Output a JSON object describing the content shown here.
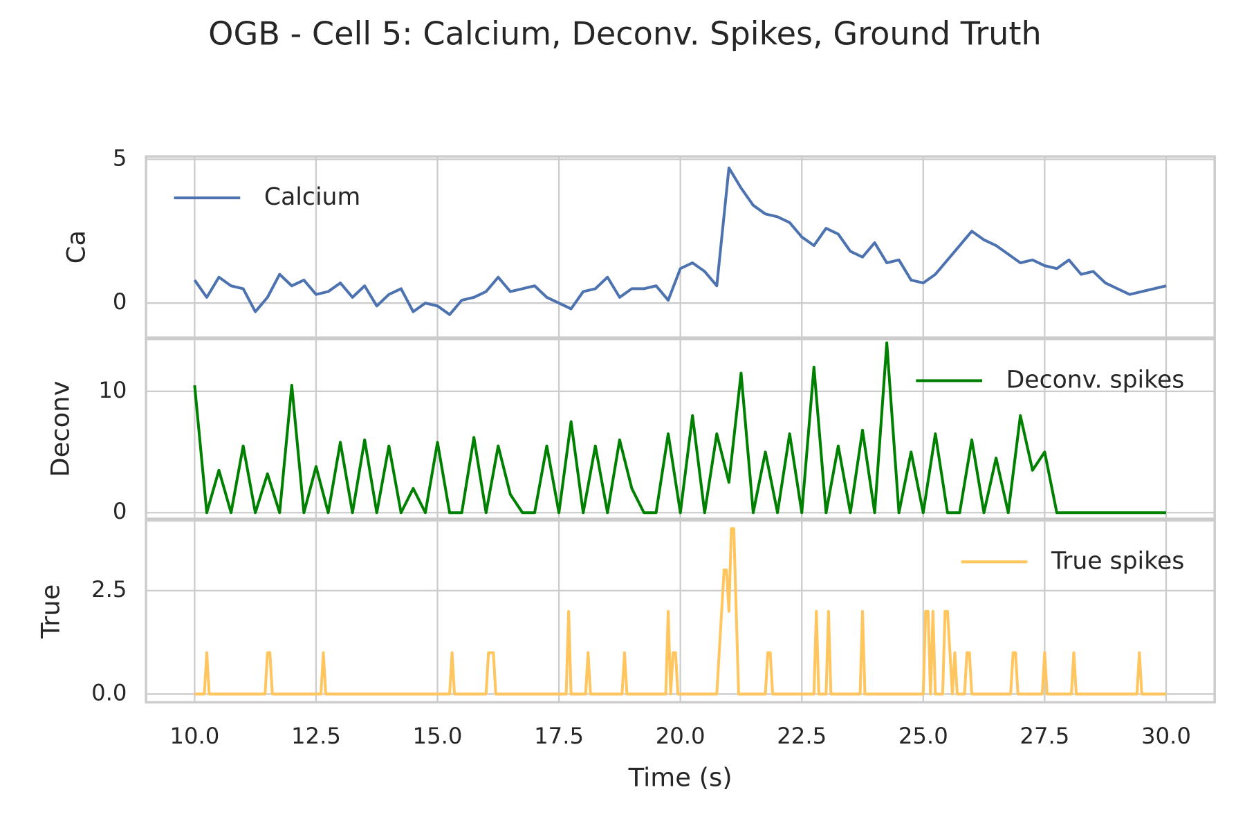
{
  "title": "OGB - Cell 5: Calcium, Deconv. Spikes, Ground Truth",
  "chart_data": [
    {
      "type": "line",
      "ylabel": "Ca",
      "legend": "upper left",
      "grid": true,
      "xlim": [
        9,
        31
      ],
      "xticks": [
        {
          "value": 10,
          "label": "10.0"
        },
        12.5,
        {
          "value": 15,
          "label": "15.0"
        },
        17.5,
        {
          "value": 20,
          "label": "20.0"
        },
        22.5,
        {
          "value": 25,
          "label": "25.0"
        },
        27.5,
        {
          "value": 30,
          "label": "30.0"
        }
      ],
      "ylim": [
        -1.2,
        5.1
      ],
      "yticks": [
        0,
        5
      ],
      "x": [
        10,
        10.25,
        10.5,
        10.75,
        11,
        11.25,
        11.5,
        11.75,
        12,
        12.25,
        12.5,
        12.75,
        13,
        13.25,
        13.5,
        13.75,
        14,
        14.25,
        14.5,
        14.75,
        15,
        15.25,
        15.5,
        15.75,
        16,
        16.25,
        16.5,
        16.75,
        17,
        17.25,
        17.5,
        17.75,
        18,
        18.25,
        18.5,
        18.75,
        19,
        19.25,
        19.5,
        19.75,
        20,
        20.25,
        20.5,
        20.75,
        21,
        21.25,
        21.5,
        21.75,
        22,
        22.25,
        22.5,
        22.75,
        23,
        23.25,
        23.5,
        23.75,
        24,
        24.25,
        24.5,
        24.75,
        25,
        25.25,
        25.5,
        25.75,
        26,
        26.25,
        26.5,
        26.75,
        27,
        27.25,
        27.5,
        27.75,
        28,
        28.25,
        28.5,
        28.75,
        29,
        29.25,
        29.5,
        29.75,
        30
      ],
      "series": [
        {
          "name": "Calcium",
          "color": "#4c72b0",
          "values": [
            0.8,
            0.2,
            0.9,
            0.6,
            0.5,
            -0.3,
            0.2,
            1.0,
            0.6,
            0.8,
            0.3,
            0.4,
            0.7,
            0.2,
            0.6,
            -0.1,
            0.3,
            0.5,
            -0.3,
            0.0,
            -0.1,
            -0.4,
            0.1,
            0.2,
            0.4,
            0.9,
            0.4,
            0.5,
            0.6,
            0.2,
            0.0,
            -0.2,
            0.4,
            0.5,
            0.9,
            0.2,
            0.5,
            0.5,
            0.6,
            0.1,
            1.2,
            1.4,
            1.1,
            0.6,
            4.7,
            4.0,
            3.4,
            3.1,
            3.0,
            2.8,
            2.3,
            2.0,
            2.6,
            2.4,
            1.8,
            1.6,
            2.1,
            1.4,
            1.5,
            0.8,
            0.7,
            1.0,
            1.5,
            2.0,
            2.5,
            2.2,
            2.0,
            1.7,
            1.4,
            1.5,
            1.3,
            1.2,
            1.5,
            1.0,
            1.1,
            0.7,
            0.5,
            0.3,
            0.4,
            0.5,
            0.6
          ]
        }
      ]
    },
    {
      "type": "line",
      "ylabel": "Deconv",
      "legend": "upper right",
      "grid": true,
      "xlim": [
        9,
        31
      ],
      "xticks": [
        {
          "value": 10,
          "label": "10.0"
        },
        12.5,
        {
          "value": 15,
          "label": "15.0"
        },
        17.5,
        {
          "value": 20,
          "label": "20.0"
        },
        22.5,
        {
          "value": 25,
          "label": "25.0"
        },
        27.5,
        {
          "value": 30,
          "label": "30.0"
        }
      ],
      "ylim": [
        -0.5,
        14.3
      ],
      "yticks": [
        0,
        10
      ],
      "x": [
        10,
        10.25,
        10.5,
        10.75,
        11,
        11.25,
        11.5,
        11.75,
        12,
        12.25,
        12.5,
        12.75,
        13,
        13.25,
        13.5,
        13.75,
        14,
        14.25,
        14.5,
        14.75,
        15,
        15.25,
        15.5,
        15.75,
        16,
        16.25,
        16.5,
        16.75,
        17,
        17.25,
        17.5,
        17.75,
        18,
        18.25,
        18.5,
        18.75,
        19,
        19.25,
        19.5,
        19.75,
        20,
        20.25,
        20.5,
        20.75,
        21,
        21.25,
        21.5,
        21.75,
        22,
        22.25,
        22.5,
        22.75,
        23,
        23.25,
        23.5,
        23.75,
        24,
        24.25,
        24.5,
        24.75,
        25,
        25.25,
        25.5,
        25.75,
        26,
        26.25,
        26.5,
        26.75,
        27,
        27.25,
        27.5,
        27.75,
        28,
        28.25,
        28.5,
        28.75,
        29,
        29.25,
        29.5,
        29.75,
        30
      ],
      "series": [
        {
          "name": "Deconv. spikes",
          "color": "#008000",
          "values": [
            10.5,
            0,
            3.5,
            0,
            5.5,
            0,
            3.2,
            0,
            10.5,
            0,
            3.8,
            0,
            5.8,
            0,
            6.0,
            0,
            5.5,
            0,
            2.0,
            0,
            5.8,
            0,
            0,
            6.2,
            0,
            5.5,
            1.5,
            0,
            0,
            5.5,
            0,
            7.5,
            0,
            5.5,
            0,
            6.0,
            2.0,
            0,
            0,
            6.5,
            0,
            8.0,
            0,
            6.5,
            2.5,
            11.5,
            0,
            5.0,
            0,
            6.5,
            0,
            12.0,
            0,
            5.5,
            0,
            6.8,
            0,
            14.0,
            0,
            5.0,
            0,
            6.5,
            0,
            0,
            6.0,
            0,
            4.5,
            0,
            8.0,
            3.5,
            5.0,
            0,
            0,
            0,
            0,
            0,
            0,
            0,
            0,
            0,
            0
          ]
        }
      ]
    },
    {
      "type": "line",
      "ylabel": "True",
      "xlabel": "Time (s)",
      "legend": "upper right",
      "grid": true,
      "xlim": [
        9,
        31
      ],
      "xticks": [
        {
          "value": 10,
          "label": "10.0"
        },
        12.5,
        {
          "value": 15,
          "label": "15.0"
        },
        17.5,
        {
          "value": 20,
          "label": "20.0"
        },
        22.5,
        {
          "value": 25,
          "label": "25.0"
        },
        27.5,
        {
          "value": 30,
          "label": "30.0"
        }
      ],
      "ylim": [
        -0.2,
        4.2
      ],
      "yticks": [
        {
          "value": 0,
          "label": "0.0"
        },
        2.5
      ],
      "x": [
        10,
        10.2,
        10.25,
        10.3,
        11.45,
        11.5,
        11.55,
        11.6,
        12.6,
        12.65,
        12.7,
        15.25,
        15.3,
        15.35,
        16,
        16.05,
        16.15,
        16.2,
        17.65,
        17.7,
        17.75,
        18.05,
        18.1,
        18.15,
        18.8,
        18.85,
        18.9,
        19.7,
        19.75,
        19.8,
        19.85,
        19.9,
        19.95,
        20.75,
        20.9,
        20.95,
        21,
        21.05,
        21.1,
        21.15,
        21.2,
        21.75,
        21.8,
        21.85,
        21.9,
        22.75,
        22.8,
        22.85,
        23,
        23.05,
        23.1,
        23.7,
        23.75,
        23.8,
        25,
        25.05,
        25.1,
        25.15,
        25.2,
        25.25,
        25.4,
        25.45,
        25.5,
        25.55,
        25.6,
        25.65,
        25.7,
        25.85,
        25.9,
        25.95,
        26,
        26.8,
        26.85,
        26.9,
        26.95,
        27.45,
        27.5,
        27.55,
        28.05,
        28.1,
        28.15,
        29.4,
        29.45,
        29.5,
        30
      ],
      "series": [
        {
          "name": "True spikes",
          "color": "#ffc55f",
          "values": [
            0,
            0,
            1,
            0,
            0,
            1,
            1,
            0,
            0,
            1,
            0,
            0,
            1,
            0,
            0,
            1,
            1,
            0,
            0,
            2,
            0,
            0,
            1,
            0,
            0,
            1,
            0,
            0,
            2,
            0,
            1,
            1,
            0,
            0,
            3,
            3,
            2,
            4,
            4,
            2,
            0,
            0,
            1,
            1,
            0,
            0,
            2,
            0,
            0,
            2,
            0,
            0,
            2,
            0,
            0,
            2,
            2,
            0,
            2,
            0,
            0,
            2,
            2,
            1,
            0,
            1,
            0,
            0,
            1,
            1,
            0,
            0,
            1,
            1,
            0,
            0,
            1,
            0,
            0,
            1,
            0,
            0,
            1,
            0,
            0
          ]
        }
      ]
    }
  ]
}
